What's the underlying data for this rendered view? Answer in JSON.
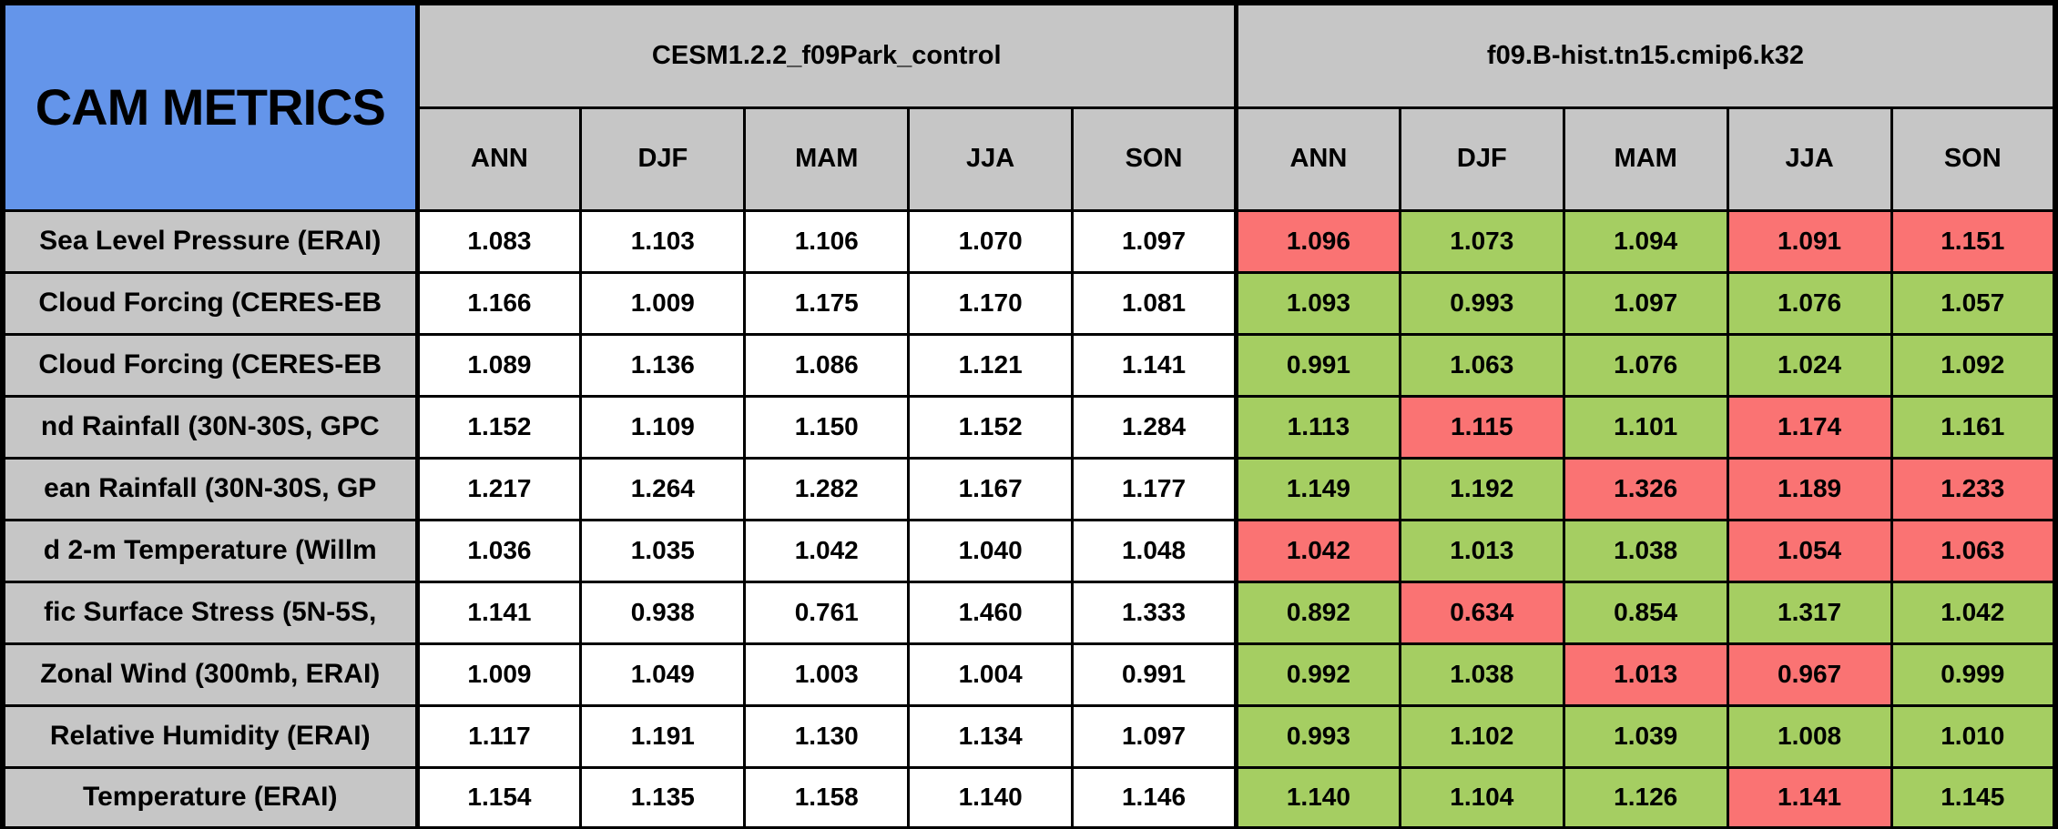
{
  "colors": {
    "title_bg": "#6495EA",
    "header_bg": "#C6C6C6",
    "label_bg": "#C6C6C6",
    "value_bg": "#FFFFFF",
    "green": "#A5CE62",
    "red": "#FA7373",
    "border": "#000000",
    "text": "#000000"
  },
  "chart_data": {
    "type": "table",
    "title": "CAM METRICS",
    "column_groups": [
      {
        "name": "CESM1.2.2_f09Park_control",
        "seasons": [
          "ANN",
          "DJF",
          "MAM",
          "JJA",
          "SON"
        ]
      },
      {
        "name": "f09.B-hist.tn15.cmip6.k32",
        "seasons": [
          "ANN",
          "DJF",
          "MAM",
          "JJA",
          "SON"
        ]
      }
    ],
    "rows": [
      {
        "label": "Sea Level Pressure (ERAI)",
        "control": [
          "1.083",
          "1.103",
          "1.106",
          "1.070",
          "1.097"
        ],
        "experiment": [
          "1.096",
          "1.073",
          "1.094",
          "1.091",
          "1.151"
        ],
        "experiment_status": [
          "red",
          "green",
          "green",
          "red",
          "red"
        ]
      },
      {
        "label": "Cloud Forcing (CERES-EB",
        "control": [
          "1.166",
          "1.009",
          "1.175",
          "1.170",
          "1.081"
        ],
        "experiment": [
          "1.093",
          "0.993",
          "1.097",
          "1.076",
          "1.057"
        ],
        "experiment_status": [
          "green",
          "green",
          "green",
          "green",
          "green"
        ]
      },
      {
        "label": "Cloud Forcing (CERES-EB",
        "control": [
          "1.089",
          "1.136",
          "1.086",
          "1.121",
          "1.141"
        ],
        "experiment": [
          "0.991",
          "1.063",
          "1.076",
          "1.024",
          "1.092"
        ],
        "experiment_status": [
          "green",
          "green",
          "green",
          "green",
          "green"
        ]
      },
      {
        "label": "nd Rainfall (30N-30S, GPC",
        "control": [
          "1.152",
          "1.109",
          "1.150",
          "1.152",
          "1.284"
        ],
        "experiment": [
          "1.113",
          "1.115",
          "1.101",
          "1.174",
          "1.161"
        ],
        "experiment_status": [
          "green",
          "red",
          "green",
          "red",
          "green"
        ]
      },
      {
        "label": "ean Rainfall (30N-30S, GP",
        "control": [
          "1.217",
          "1.264",
          "1.282",
          "1.167",
          "1.177"
        ],
        "experiment": [
          "1.149",
          "1.192",
          "1.326",
          "1.189",
          "1.233"
        ],
        "experiment_status": [
          "green",
          "green",
          "red",
          "red",
          "red"
        ]
      },
      {
        "label": "d 2-m Temperature (Willm",
        "control": [
          "1.036",
          "1.035",
          "1.042",
          "1.040",
          "1.048"
        ],
        "experiment": [
          "1.042",
          "1.013",
          "1.038",
          "1.054",
          "1.063"
        ],
        "experiment_status": [
          "red",
          "green",
          "green",
          "red",
          "red"
        ]
      },
      {
        "label": "fic Surface Stress (5N-5S,",
        "control": [
          "1.141",
          "0.938",
          "0.761",
          "1.460",
          "1.333"
        ],
        "experiment": [
          "0.892",
          "0.634",
          "0.854",
          "1.317",
          "1.042"
        ],
        "experiment_status": [
          "green",
          "red",
          "green",
          "green",
          "green"
        ]
      },
      {
        "label": "Zonal Wind (300mb, ERAI)",
        "control": [
          "1.009",
          "1.049",
          "1.003",
          "1.004",
          "0.991"
        ],
        "experiment": [
          "0.992",
          "1.038",
          "1.013",
          "0.967",
          "0.999"
        ],
        "experiment_status": [
          "green",
          "green",
          "red",
          "red",
          "green"
        ]
      },
      {
        "label": "Relative Humidity (ERAI)",
        "control": [
          "1.117",
          "1.191",
          "1.130",
          "1.134",
          "1.097"
        ],
        "experiment": [
          "0.993",
          "1.102",
          "1.039",
          "1.008",
          "1.010"
        ],
        "experiment_status": [
          "green",
          "green",
          "green",
          "green",
          "green"
        ]
      },
      {
        "label": "Temperature (ERAI)",
        "control": [
          "1.154",
          "1.135",
          "1.158",
          "1.140",
          "1.146"
        ],
        "experiment": [
          "1.140",
          "1.104",
          "1.126",
          "1.141",
          "1.145"
        ],
        "experiment_status": [
          "green",
          "green",
          "green",
          "red",
          "green"
        ]
      }
    ]
  }
}
